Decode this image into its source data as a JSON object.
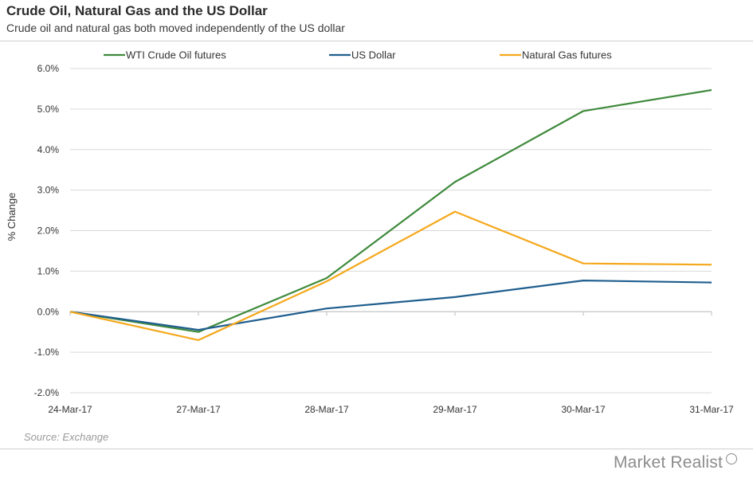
{
  "header": {
    "title": "Crude Oil, Natural Gas and the US Dollar",
    "subtitle": "Crude oil  and natural gas both moved independently of the US dollar"
  },
  "footer": {
    "source": "Source: Exchange",
    "brand": "Market Realist"
  },
  "chart_data": {
    "type": "line",
    "title": "Crude Oil, Natural Gas and the US Dollar",
    "subtitle": "Crude oil  and natural gas both moved independently of the US dollar",
    "xlabel": "",
    "ylabel": "% Change",
    "categories": [
      "24-Mar-17",
      "27-Mar-17",
      "28-Mar-17",
      "29-Mar-17",
      "30-Mar-17",
      "31-Mar-17"
    ],
    "ylim": [
      -2.0,
      6.0
    ],
    "yticks": [
      -2.0,
      -1.0,
      0.0,
      1.0,
      2.0,
      3.0,
      4.0,
      5.0,
      6.0
    ],
    "ytick_labels": [
      "-2.0%",
      "-1.0%",
      "0.0%",
      "1.0%",
      "2.0%",
      "3.0%",
      "4.0%",
      "5.0%",
      "6.0%"
    ],
    "grid": true,
    "legend_position": "top",
    "series": [
      {
        "name": "WTI Crude Oil futures",
        "color": "#3f8a3c",
        "values": [
          0.0,
          -0.5,
          0.83,
          3.2,
          4.95,
          5.47
        ]
      },
      {
        "name": "US Dollar",
        "color": "#1f5e8e",
        "values": [
          0.0,
          -0.45,
          0.08,
          0.36,
          0.77,
          0.72
        ]
      },
      {
        "name": "Natural Gas futures",
        "color": "#f5a81c",
        "values": [
          0.0,
          -0.7,
          0.75,
          2.47,
          1.19,
          1.16
        ]
      }
    ]
  }
}
